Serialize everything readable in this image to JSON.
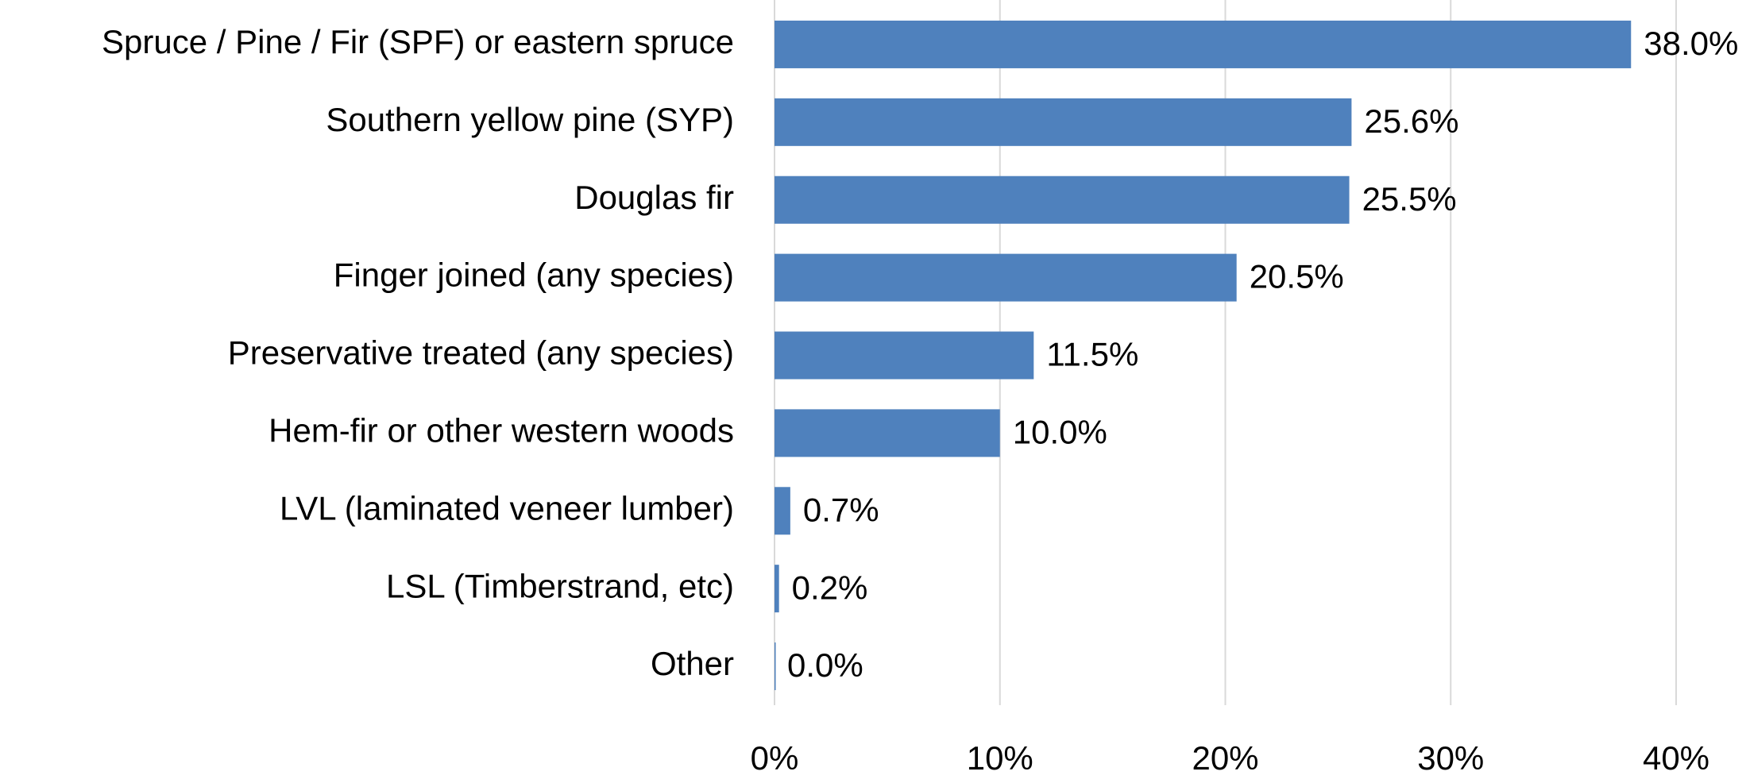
{
  "chart_data": {
    "type": "bar",
    "orientation": "horizontal",
    "categories": [
      "Spruce / Pine / Fir (SPF) or eastern spruce",
      "Southern yellow pine (SYP)",
      "Douglas fir",
      "Finger joined (any species)",
      "Preservative treated (any species)",
      "Hem-fir or other western woods",
      "LVL (laminated veneer lumber)",
      "LSL (Timberstrand, etc)",
      "Other"
    ],
    "values": [
      38.0,
      25.6,
      25.5,
      20.5,
      11.5,
      10.0,
      0.7,
      0.2,
      0.0
    ],
    "value_labels": [
      "38.0%",
      "25.6%",
      "25.5%",
      "20.5%",
      "11.5%",
      "10.0%",
      "0.7%",
      "0.2%",
      "0.0%"
    ],
    "color": "#4f81bd",
    "xlim": [
      0,
      40
    ],
    "xticks": [
      {
        "value": 0,
        "label": "0%"
      },
      {
        "value": 10,
        "label": "10%"
      },
      {
        "value": 20,
        "label": "20%"
      },
      {
        "value": 30,
        "label": "30%"
      },
      {
        "value": 40,
        "label": "40%"
      }
    ],
    "grid": true
  }
}
